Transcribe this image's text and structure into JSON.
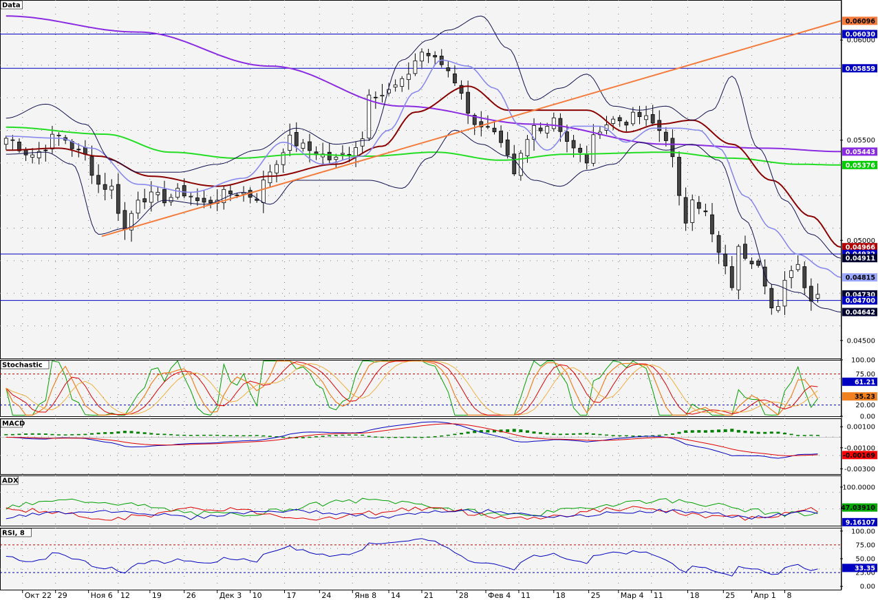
{
  "chart_data": {
    "type": "candlestick",
    "panes": [
      {
        "name": "Data",
        "y_range": [
          0.0441,
          0.062
        ],
        "y_ticks": [
          "0.06000",
          "0.05500",
          "0.05000",
          "0.04500"
        ],
        "horizontal_lines": [
          0.0603,
          0.05859,
          0.04932,
          0.047
        ],
        "price_labels": [
          {
            "text": "0.06096",
            "value": 0.06096,
            "color": "#f47b3b",
            "fg": "#000000"
          },
          {
            "text": "0.06030",
            "value": 0.0603,
            "color": "#0000c0",
            "fg": "#ffffff"
          },
          {
            "text": "0.05859",
            "value": 0.05859,
            "color": "#0000c0",
            "fg": "#ffffff"
          },
          {
            "text": "0.05443",
            "value": 0.05443,
            "color": "#8a2be2",
            "fg": "#ffffff"
          },
          {
            "text": "0.05376",
            "value": 0.05376,
            "color": "#00cc00",
            "fg": "#ffffff"
          },
          {
            "text": "0.04966",
            "value": 0.04966,
            "color": "#b00000",
            "fg": "#ffffff"
          },
          {
            "text": "0.04932",
            "value": 0.04932,
            "color": "#0000c0",
            "fg": "#ffffff"
          },
          {
            "text": "0.04911",
            "value": 0.04911,
            "color": "#000030",
            "fg": "#ffffff"
          },
          {
            "text": "0.04815",
            "value": 0.04815,
            "color": "#9aa8ff",
            "fg": "#000000"
          },
          {
            "text": "0.04730",
            "value": 0.0473,
            "color": "#000030",
            "fg": "#ffffff"
          },
          {
            "text": "0.04700",
            "value": 0.047,
            "color": "#0000c0",
            "fg": "#ffffff"
          },
          {
            "text": "0.04642",
            "value": 0.04642,
            "color": "#000030",
            "fg": "#ffffff"
          }
        ],
        "trendline": {
          "from": [
            14.5,
            0.0502
          ],
          "to": [
            126.5,
            0.06096
          ],
          "color": "#f47b3b"
        },
        "overlays": [
          {
            "color": "#8a2be2",
            "points": [
              [
                0,
                0.0612
              ],
              [
                20,
                0.0604
              ],
              [
                40,
                0.0587
              ],
              [
                60,
                0.0567
              ],
              [
                80,
                0.0558
              ],
              [
                100,
                0.0548
              ],
              [
                115,
                0.0546
              ],
              [
                126.5,
                0.05443
              ]
            ]
          },
          {
            "color": "#22dd22",
            "points": [
              [
                0,
                0.05565
              ],
              [
                15,
                0.0553
              ],
              [
                25,
                0.0544
              ],
              [
                35,
                0.0541
              ],
              [
                45,
                0.0543
              ],
              [
                55,
                0.0542
              ],
              [
                65,
                0.0544
              ],
              [
                75,
                0.054
              ],
              [
                85,
                0.0543
              ],
              [
                100,
                0.0544
              ],
              [
                110,
                0.0541
              ],
              [
                120,
                0.0538
              ],
              [
                126.5,
                0.05376
              ]
            ]
          },
          {
            "color": "#8b0000",
            "points": [
              [
                0,
                0.0545
              ],
              [
                8,
                0.0546
              ],
              [
                14,
                0.0542
              ],
              [
                22,
                0.0532
              ],
              [
                32,
                0.0527
              ],
              [
                40,
                0.0532
              ],
              [
                50,
                0.0538
              ],
              [
                57,
                0.0547
              ],
              [
                62,
                0.0564
              ],
              [
                70,
                0.0577
              ],
              [
                76,
                0.0565
              ],
              [
                82,
                0.0565
              ],
              [
                88,
                0.0565
              ],
              [
                94,
                0.0554
              ],
              [
                99,
                0.0558
              ],
              [
                104,
                0.056
              ],
              [
                110,
                0.0548
              ],
              [
                116,
                0.053
              ],
              [
                122,
                0.0512
              ],
              [
                126.5,
                0.04966
              ]
            ]
          },
          {
            "color": "#8888ee",
            "points": [
              [
                0,
                0.0552
              ],
              [
                8,
                0.0551
              ],
              [
                13,
                0.0546
              ],
              [
                20,
                0.0528
              ],
              [
                28,
                0.0524
              ],
              [
                36,
                0.0531
              ],
              [
                42,
                0.0549
              ],
              [
                48,
                0.0538
              ],
              [
                54,
                0.0542
              ],
              [
                58,
                0.0555
              ],
              [
                62,
                0.0574
              ],
              [
                66,
                0.059
              ],
              [
                70,
                0.0587
              ],
              [
                74,
                0.0576
              ],
              [
                78,
                0.0557
              ],
              [
                82,
                0.0545
              ],
              [
                86,
                0.0557
              ],
              [
                90,
                0.0557
              ],
              [
                94,
                0.0549
              ],
              [
                98,
                0.0556
              ],
              [
                102,
                0.0556
              ],
              [
                105,
                0.0555
              ],
              [
                108,
                0.0546
              ],
              [
                112,
                0.0522
              ],
              [
                116,
                0.0506
              ],
              [
                120,
                0.0493
              ],
              [
                124,
                0.0486
              ],
              [
                126.5,
                0.04815
              ]
            ]
          },
          {
            "color": "#101050",
            "points": [
              [
                0,
                0.0561
              ],
              [
                6,
                0.0568
              ],
              [
                12,
                0.0558
              ],
              [
                16,
                0.054
              ],
              [
                20,
                0.0534
              ],
              [
                26,
                0.0534
              ],
              [
                32,
                0.0538
              ],
              [
                38,
                0.0545
              ],
              [
                44,
                0.0556
              ],
              [
                50,
                0.0548
              ],
              [
                55,
                0.055
              ],
              [
                60,
                0.059
              ],
              [
                64,
                0.06
              ],
              [
                67,
                0.0605
              ],
              [
                72,
                0.0612
              ],
              [
                76,
                0.0596
              ],
              [
                80,
                0.057
              ],
              [
                84,
                0.0576
              ],
              [
                88,
                0.0583
              ],
              [
                92,
                0.0567
              ],
              [
                96,
                0.0565
              ],
              [
                100,
                0.0567
              ],
              [
                104,
                0.056
              ],
              [
                107,
                0.0565
              ],
              [
                110,
                0.0582
              ],
              [
                114,
                0.0546
              ],
              [
                118,
                0.052
              ],
              [
                122,
                0.0503
              ],
              [
                126.5,
                0.04911
              ]
            ]
          },
          {
            "color": "#101050",
            "points": [
              [
                0,
                0.0543
              ],
              [
                6,
                0.0544
              ],
              [
                10,
                0.0538
              ],
              [
                14,
                0.0503
              ],
              [
                18,
                0.0506
              ],
              [
                24,
                0.052
              ],
              [
                30,
                0.0518
              ],
              [
                36,
                0.0524
              ],
              [
                40,
                0.0518
              ],
              [
                44,
                0.053
              ],
              [
                50,
                0.053
              ],
              [
                55,
                0.053
              ],
              [
                60,
                0.0526
              ],
              [
                64,
                0.0541
              ],
              [
                68,
                0.0555
              ],
              [
                72,
                0.0548
              ],
              [
                76,
                0.0542
              ],
              [
                80,
                0.053
              ],
              [
                84,
                0.0527
              ],
              [
                88,
                0.0535
              ],
              [
                92,
                0.0538
              ],
              [
                96,
                0.0549
              ],
              [
                100,
                0.0545
              ],
              [
                104,
                0.0548
              ],
              [
                108,
                0.054
              ],
              [
                112,
                0.051
              ],
              [
                116,
                0.0478
              ],
              [
                120,
                0.0474
              ],
              [
                124,
                0.0466
              ],
              [
                126.5,
                0.04642
              ]
            ]
          }
        ]
      },
      {
        "name": "Stochastic",
        "y_range": [
          0,
          100
        ],
        "y_ticks": [
          "100.00",
          "0.00"
        ],
        "levels": [
          {
            "value": 75,
            "text": "75.00"
          },
          {
            "value": 20,
            "text": "20.00"
          }
        ],
        "value_labels": [
          {
            "text": "61.21",
            "value": 61.21,
            "color": "#0000c0",
            "fg": "#ffffff"
          },
          {
            "text": "35.23",
            "value": 35.23,
            "color": "#f08020",
            "fg": "#000000"
          }
        ]
      },
      {
        "name": "MACD",
        "y_range": [
          -0.0035,
          0.0018
        ],
        "y_ticks": [
          "0.00100",
          "-0.00100",
          "-0.00300"
        ],
        "value_labels": [
          {
            "text": "-0.00169",
            "value": -0.00169,
            "color": "#ff0000",
            "fg": "#000000"
          }
        ]
      },
      {
        "name": "ADX",
        "y_range": [
          0,
          130
        ],
        "y_ticks": [
          "100.0000"
        ],
        "value_labels": [
          {
            "text": "47.03910",
            "value": 47.0391,
            "color": "#00aa00",
            "fg": "#000000"
          },
          {
            "text": "9.16107",
            "value": 9.16107,
            "color": "#0000c0",
            "fg": "#ffffff"
          }
        ]
      },
      {
        "name": "RSI, 8",
        "y_range": [
          -6,
          106
        ],
        "y_ticks": [
          "100.00",
          "50.00",
          "0.00"
        ],
        "levels": [
          {
            "value": 75,
            "text": "75.00"
          },
          {
            "value": 25,
            "text": "25.00"
          }
        ],
        "value_labels": [
          {
            "text": "33.35",
            "value": 33.35,
            "color": "#0000c0",
            "fg": "#ffffff"
          }
        ]
      }
    ],
    "x_axis": {
      "bars": 127,
      "labels": [
        {
          "bar": 3,
          "text": "Окт 22"
        },
        {
          "bar": 8,
          "text": "29"
        },
        {
          "bar": 13,
          "text": "Ноя 6"
        },
        {
          "bar": 17.5,
          "text": "12"
        },
        {
          "bar": 22.3,
          "text": "19"
        },
        {
          "bar": 27.5,
          "text": "26"
        },
        {
          "bar": 32.5,
          "text": "Дек 3"
        },
        {
          "bar": 37.5,
          "text": "10"
        },
        {
          "bar": 42.7,
          "text": "17"
        },
        {
          "bar": 48,
          "text": "24"
        },
        {
          "bar": 53,
          "text": "Янв 8"
        },
        {
          "bar": 58.5,
          "text": "14"
        },
        {
          "bar": 63.5,
          "text": "21"
        },
        {
          "bar": 68.8,
          "text": "28"
        },
        {
          "bar": 73.2,
          "text": "Фев 4"
        },
        {
          "bar": 78.2,
          "text": "11"
        },
        {
          "bar": 83.5,
          "text": "18"
        },
        {
          "bar": 88.8,
          "text": "25"
        },
        {
          "bar": 93.3,
          "text": "Мар 4"
        },
        {
          "bar": 98.3,
          "text": "11"
        },
        {
          "bar": 103.8,
          "text": "18"
        },
        {
          "bar": 109.2,
          "text": "25"
        },
        {
          "bar": 113.5,
          "text": "Апр 1"
        },
        {
          "bar": 118.5,
          "text": "8"
        }
      ]
    },
    "key_closes": [
      [
        0,
        0.0551
      ],
      [
        4,
        0.0543
      ],
      [
        8,
        0.0552
      ],
      [
        12,
        0.0542
      ],
      [
        14,
        0.0528
      ],
      [
        16,
        0.0526
      ],
      [
        18,
        0.0505
      ],
      [
        20,
        0.0522
      ],
      [
        24,
        0.0521
      ],
      [
        27,
        0.0524
      ],
      [
        30,
        0.0518
      ],
      [
        32,
        0.0522
      ],
      [
        35,
        0.0524
      ],
      [
        38,
        0.0522
      ],
      [
        40,
        0.0535
      ],
      [
        43,
        0.055
      ],
      [
        46,
        0.0545
      ],
      [
        50,
        0.054
      ],
      [
        52,
        0.0545
      ],
      [
        54,
        0.0551
      ],
      [
        55,
        0.0575
      ],
      [
        57,
        0.0573
      ],
      [
        60,
        0.0578
      ],
      [
        62,
        0.059
      ],
      [
        63,
        0.0594
      ],
      [
        66,
        0.0588
      ],
      [
        67,
        0.0585
      ],
      [
        69,
        0.0575
      ],
      [
        70,
        0.0562
      ],
      [
        72,
        0.0558
      ],
      [
        74,
        0.0552
      ],
      [
        76,
        0.054
      ],
      [
        77,
        0.0531
      ],
      [
        78,
        0.0542
      ],
      [
        80,
        0.0557
      ],
      [
        82,
        0.0558
      ],
      [
        83,
        0.0562
      ],
      [
        85,
        0.055
      ],
      [
        86,
        0.0545
      ],
      [
        88,
        0.054
      ],
      [
        89,
        0.055
      ],
      [
        90,
        0.0557
      ],
      [
        92,
        0.056
      ],
      [
        94,
        0.056
      ],
      [
        96,
        0.0562
      ],
      [
        98,
        0.0558
      ],
      [
        100,
        0.0552
      ],
      [
        101,
        0.054
      ],
      [
        102,
        0.052
      ],
      [
        103,
        0.051
      ],
      [
        104,
        0.0523
      ],
      [
        106,
        0.0513
      ],
      [
        107,
        0.0502
      ],
      [
        108,
        0.0493
      ],
      [
        109,
        0.0485
      ],
      [
        110,
        0.0478
      ],
      [
        111,
        0.0495
      ],
      [
        112,
        0.0493
      ],
      [
        113,
        0.0491
      ],
      [
        114,
        0.049
      ],
      [
        115,
        0.048
      ],
      [
        116,
        0.0466
      ],
      [
        117,
        0.0465
      ],
      [
        118,
        0.0478
      ],
      [
        119,
        0.0487
      ],
      [
        120,
        0.0488
      ],
      [
        121,
        0.0479
      ],
      [
        122,
        0.0471
      ],
      [
        123,
        0.0473
      ]
    ]
  }
}
